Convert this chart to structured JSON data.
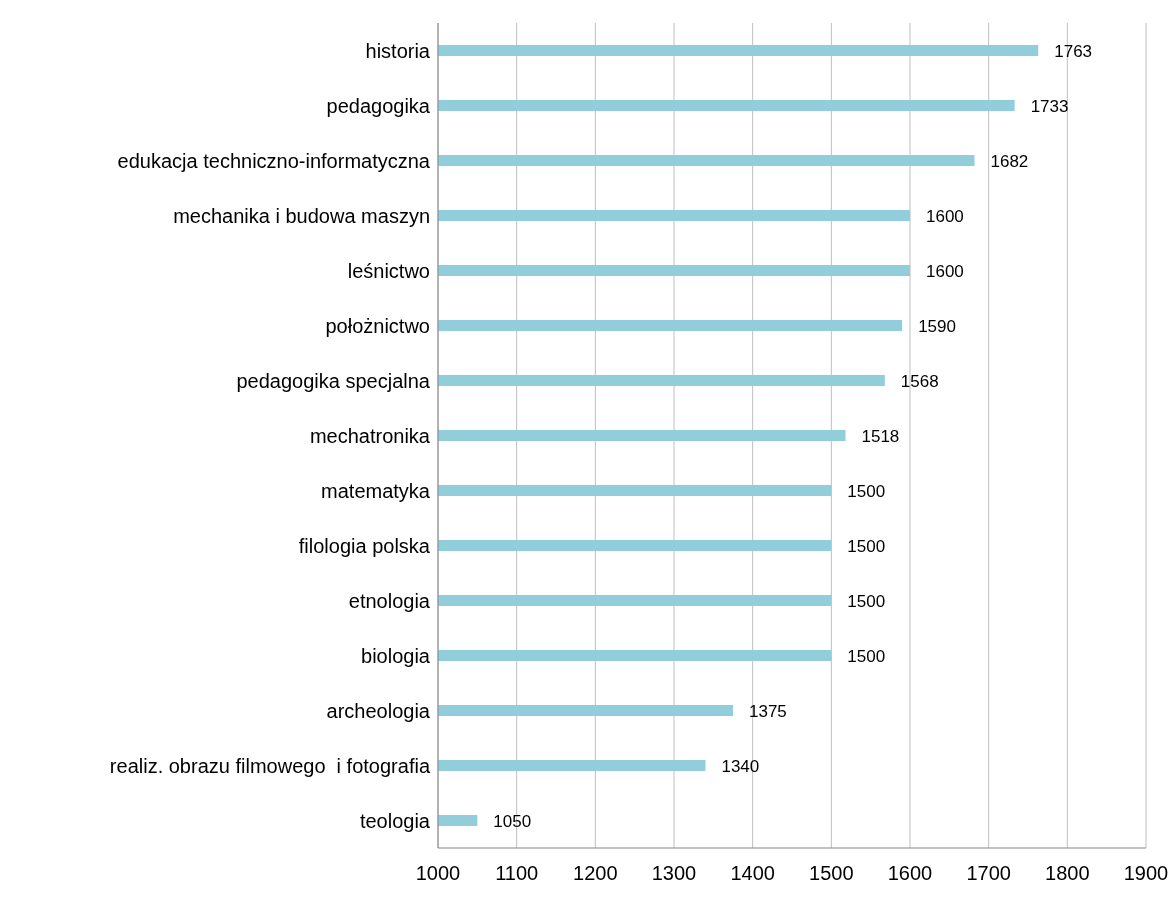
{
  "chart_data": {
    "type": "bar",
    "orientation": "horizontal",
    "categories": [
      "historia",
      "pedagogika",
      "edukacja techniczno-informatyczna",
      "mechanika i budowa maszyn",
      "leśnictwo",
      "położnictwo",
      "pedagogika specjalna",
      "mechatronika",
      "matematyka",
      "filologia polska",
      "etnologia",
      "biologia",
      "archeologia",
      "realiz. obrazu filmowego  i fotografia",
      "teologia"
    ],
    "values": [
      1763,
      1733,
      1682,
      1600,
      1600,
      1590,
      1568,
      1518,
      1500,
      1500,
      1500,
      1500,
      1375,
      1340,
      1050
    ],
    "color": "#92cddc",
    "xlim": [
      1000,
      1900
    ],
    "xticks": [
      1000,
      1100,
      1200,
      1300,
      1400,
      1500,
      1600,
      1700,
      1800,
      1900
    ],
    "grid": "x",
    "data_labels": true
  }
}
